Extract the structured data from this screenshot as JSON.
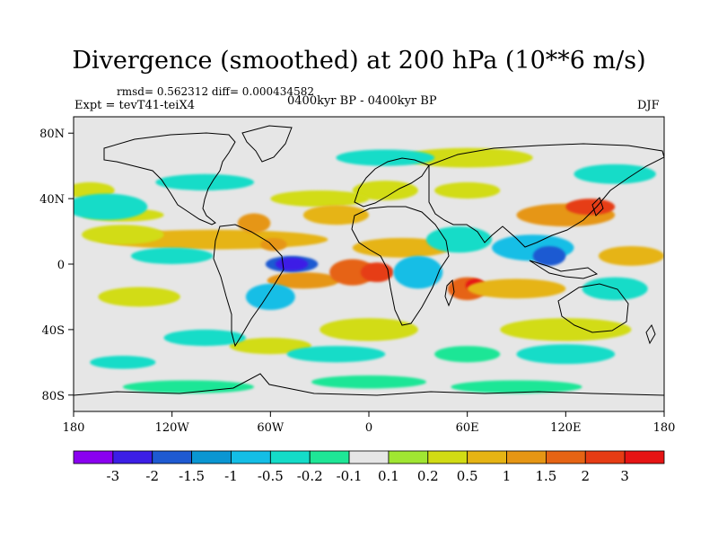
{
  "header": {
    "title": "Divergence (smoothed) at 200 hPa (10**6 m/s)",
    "rmsd_line": "rmsd= 0.562312 diff= 0.000434582",
    "experiment": "Expt = tevT41-teiX4",
    "period": "0400kyr BP - 0400kyr BP",
    "season": "DJF"
  },
  "colors": {
    "neutral": "#e6e6e6",
    "coast": "#000000",
    "frame": "#000000"
  },
  "chart_data": {
    "type": "heatmap",
    "title": "Divergence (smoothed) at 200 hPa (10**6 m/s)",
    "xlabel": "",
    "ylabel": "",
    "xlim": [
      -180,
      180
    ],
    "ylim": [
      -90,
      90
    ],
    "x_ticks": [
      {
        "value": -180,
        "label": "180"
      },
      {
        "value": -120,
        "label": "120W"
      },
      {
        "value": -60,
        "label": "60W"
      },
      {
        "value": 0,
        "label": "0"
      },
      {
        "value": 60,
        "label": "60E"
      },
      {
        "value": 120,
        "label": "120E"
      },
      {
        "value": 180,
        "label": "180"
      }
    ],
    "y_ticks": [
      {
        "value": 80,
        "label": "80N"
      },
      {
        "value": 40,
        "label": "40N"
      },
      {
        "value": 0,
        "label": "0"
      },
      {
        "value": -40,
        "label": "40S"
      },
      {
        "value": -80,
        "label": "80S"
      }
    ],
    "colorbar": {
      "colors": [
        "#8a00f0",
        "#3c1ee6",
        "#1e5ad2",
        "#0a96d2",
        "#14bee6",
        "#14dcc8",
        "#1ee696",
        "#e6e6e6",
        "#a0e632",
        "#d2dc14",
        "#e6b414",
        "#e69614",
        "#e66414",
        "#e63c14",
        "#e61414"
      ],
      "labels": [
        "-3",
        "-2",
        "-1.5",
        "-1",
        "-0.5",
        "-0.2",
        "-0.1",
        "0.1",
        "0.2",
        "0.5",
        "1",
        "1.5",
        "2",
        "3"
      ]
    },
    "blobs": [
      {
        "lon": -95,
        "lat": 15,
        "rx": 70,
        "ry": 6,
        "level": 10
      },
      {
        "lon": -150,
        "lat": 18,
        "rx": 25,
        "ry": 6,
        "level": 9
      },
      {
        "lon": -70,
        "lat": 25,
        "rx": 10,
        "ry": 6,
        "level": 11
      },
      {
        "lon": -58,
        "lat": 12,
        "rx": 8,
        "ry": 4,
        "level": 11
      },
      {
        "lon": -40,
        "lat": -10,
        "rx": 22,
        "ry": 5,
        "level": 11
      },
      {
        "lon": -10,
        "lat": -5,
        "rx": 14,
        "ry": 8,
        "level": 12
      },
      {
        "lon": 20,
        "lat": 10,
        "rx": 30,
        "ry": 6,
        "level": 10
      },
      {
        "lon": 5,
        "lat": -5,
        "rx": 10,
        "ry": 6,
        "level": 13
      },
      {
        "lon": 60,
        "lat": -15,
        "rx": 12,
        "ry": 7,
        "level": 12
      },
      {
        "lon": 65,
        "lat": -13,
        "rx": 6,
        "ry": 4,
        "level": 14
      },
      {
        "lon": 90,
        "lat": -15,
        "rx": 30,
        "ry": 6,
        "level": 10
      },
      {
        "lon": 120,
        "lat": 30,
        "rx": 30,
        "ry": 7,
        "level": 11
      },
      {
        "lon": 135,
        "lat": 35,
        "rx": 15,
        "ry": 5,
        "level": 13
      },
      {
        "lon": 160,
        "lat": 5,
        "rx": 20,
        "ry": 6,
        "level": 10
      },
      {
        "lon": -150,
        "lat": 30,
        "rx": 25,
        "ry": 4,
        "level": 9
      },
      {
        "lon": 10,
        "lat": 45,
        "rx": 20,
        "ry": 6,
        "level": 9
      },
      {
        "lon": -30,
        "lat": 40,
        "rx": 30,
        "ry": 5,
        "level": 9
      },
      {
        "lon": 60,
        "lat": 65,
        "rx": 40,
        "ry": 6,
        "level": 9
      },
      {
        "lon": -140,
        "lat": -20,
        "rx": 25,
        "ry": 6,
        "level": 9
      },
      {
        "lon": 0,
        "lat": -40,
        "rx": 30,
        "ry": 7,
        "level": 9
      },
      {
        "lon": 120,
        "lat": -40,
        "rx": 40,
        "ry": 7,
        "level": 9
      },
      {
        "lon": -170,
        "lat": 45,
        "rx": 15,
        "ry": 5,
        "level": 9
      },
      {
        "lon": -60,
        "lat": -50,
        "rx": 25,
        "ry": 5,
        "level": 9
      },
      {
        "lon": 60,
        "lat": 45,
        "rx": 20,
        "ry": 5,
        "level": 9
      },
      {
        "lon": -20,
        "lat": 30,
        "rx": 20,
        "ry": 6,
        "level": 10
      },
      {
        "lon": -47,
        "lat": 0,
        "rx": 16,
        "ry": 5,
        "level": 2
      },
      {
        "lon": -47,
        "lat": 0,
        "rx": 10,
        "ry": 4,
        "level": 1
      },
      {
        "lon": -60,
        "lat": -20,
        "rx": 15,
        "ry": 8,
        "level": 4
      },
      {
        "lon": 30,
        "lat": -5,
        "rx": 15,
        "ry": 10,
        "level": 4
      },
      {
        "lon": 100,
        "lat": 10,
        "rx": 25,
        "ry": 8,
        "level": 4
      },
      {
        "lon": 110,
        "lat": 5,
        "rx": 10,
        "ry": 6,
        "level": 2
      },
      {
        "lon": -120,
        "lat": 5,
        "rx": 25,
        "ry": 5,
        "level": 5
      },
      {
        "lon": -160,
        "lat": 35,
        "rx": 25,
        "ry": 8,
        "level": 5
      },
      {
        "lon": 55,
        "lat": 15,
        "rx": 20,
        "ry": 8,
        "level": 5
      },
      {
        "lon": -100,
        "lat": 50,
        "rx": 30,
        "ry": 5,
        "level": 5
      },
      {
        "lon": 150,
        "lat": 55,
        "rx": 25,
        "ry": 6,
        "level": 5
      },
      {
        "lon": 120,
        "lat": -55,
        "rx": 30,
        "ry": 6,
        "level": 5
      },
      {
        "lon": -20,
        "lat": -55,
        "rx": 30,
        "ry": 5,
        "level": 5
      },
      {
        "lon": 150,
        "lat": -15,
        "rx": 20,
        "ry": 7,
        "level": 5
      },
      {
        "lon": -100,
        "lat": -45,
        "rx": 25,
        "ry": 5,
        "level": 5
      },
      {
        "lon": 10,
        "lat": 65,
        "rx": 30,
        "ry": 5,
        "level": 5
      },
      {
        "lon": -150,
        "lat": -60,
        "rx": 20,
        "ry": 4,
        "level": 5
      },
      {
        "lon": 60,
        "lat": -55,
        "rx": 20,
        "ry": 5,
        "level": 6
      },
      {
        "lon": 90,
        "lat": -75,
        "rx": 40,
        "ry": 4,
        "level": 6
      },
      {
        "lon": -110,
        "lat": -75,
        "rx": 40,
        "ry": 4,
        "level": 6
      },
      {
        "lon": 0,
        "lat": -72,
        "rx": 35,
        "ry": 4,
        "level": 6
      }
    ]
  }
}
